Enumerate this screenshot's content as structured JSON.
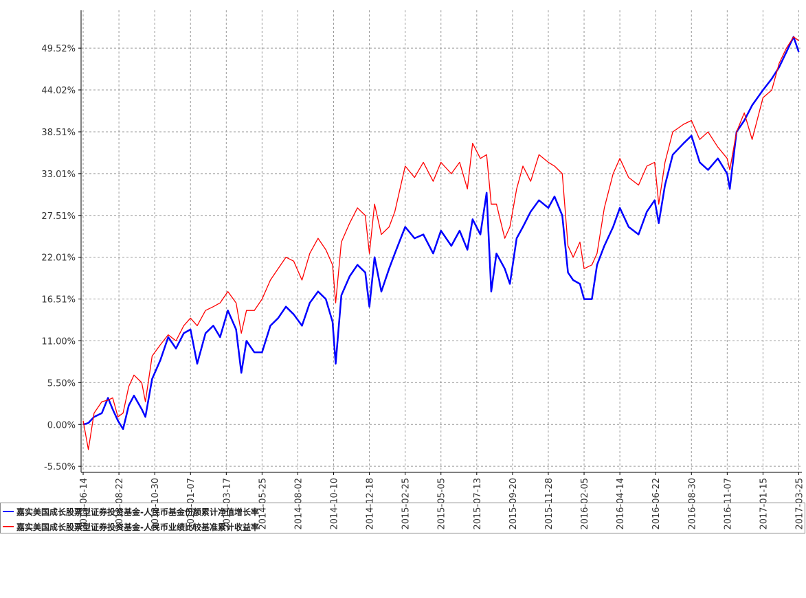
{
  "chart_data": {
    "type": "line",
    "x": [
      "2013-06-14",
      "2013-06-24",
      "2013-07-05",
      "2013-07-20",
      "2013-08-01",
      "2013-08-10",
      "2013-08-20",
      "2013-08-30",
      "2013-09-10",
      "2013-09-20",
      "2013-10-05",
      "2013-10-12",
      "2013-10-25",
      "2013-11-10",
      "2013-11-25",
      "2013-12-10",
      "2013-12-25",
      "2014-01-07",
      "2014-01-20",
      "2014-02-05",
      "2014-02-20",
      "2014-03-05",
      "2014-03-20",
      "2014-04-05",
      "2014-04-15",
      "2014-04-25",
      "2014-05-10",
      "2014-05-25",
      "2014-06-10",
      "2014-06-25",
      "2014-07-10",
      "2014-07-25",
      "2014-08-10",
      "2014-08-25",
      "2014-09-10",
      "2014-09-25",
      "2014-10-08",
      "2014-10-14",
      "2014-10-25",
      "2014-11-10",
      "2014-11-25",
      "2014-12-10",
      "2014-12-18",
      "2014-12-28",
      "2015-01-10",
      "2015-01-25",
      "2015-02-05",
      "2015-02-25",
      "2015-03-15",
      "2015-04-01",
      "2015-04-20",
      "2015-05-05",
      "2015-05-25",
      "2015-06-10",
      "2015-06-25",
      "2015-07-05",
      "2015-07-20",
      "2015-08-01",
      "2015-08-10",
      "2015-08-20",
      "2015-09-05",
      "2015-09-15",
      "2015-09-28",
      "2015-10-10",
      "2015-10-25",
      "2015-11-10",
      "2015-11-28",
      "2015-12-10",
      "2015-12-25",
      "2016-01-05",
      "2016-01-15",
      "2016-01-28",
      "2016-02-05",
      "2016-02-20",
      "2016-03-01",
      "2016-03-15",
      "2016-04-01",
      "2016-04-14",
      "2016-05-01",
      "2016-05-20",
      "2016-06-05",
      "2016-06-20",
      "2016-06-28",
      "2016-07-10",
      "2016-07-25",
      "2016-08-15",
      "2016-08-30",
      "2016-09-15",
      "2016-10-01",
      "2016-10-20",
      "2016-11-07",
      "2016-11-12",
      "2016-11-25",
      "2016-12-10",
      "2016-12-25",
      "2017-01-15",
      "2017-02-01",
      "2017-02-15",
      "2017-03-01",
      "2017-03-15",
      "2017-03-25"
    ],
    "series": [
      {
        "name": "嘉实美国成长股票型证券投资基金-人民币基金份额累计净值增长率",
        "color": "#0000ff",
        "values": [
          0.0,
          0.2,
          1.0,
          1.5,
          3.5,
          2.0,
          0.5,
          -0.6,
          2.5,
          3.8,
          2.0,
          1.0,
          6.0,
          8.5,
          11.5,
          10.0,
          12.0,
          12.5,
          8.0,
          12.0,
          13.0,
          11.5,
          15.0,
          12.5,
          6.8,
          11.0,
          9.5,
          9.5,
          13.0,
          14.0,
          15.5,
          14.5,
          13.0,
          16.0,
          17.5,
          16.5,
          13.5,
          8.0,
          17.0,
          19.5,
          21.0,
          20.0,
          15.5,
          22.0,
          17.5,
          20.5,
          22.5,
          26.0,
          24.5,
          25.0,
          22.5,
          25.5,
          23.5,
          25.5,
          23.0,
          27.0,
          25.0,
          30.5,
          17.5,
          22.5,
          20.5,
          18.5,
          24.5,
          26.0,
          28.0,
          29.5,
          28.5,
          30.0,
          27.5,
          20.0,
          19.0,
          18.5,
          16.5,
          16.5,
          21.0,
          23.5,
          26.0,
          28.5,
          26.0,
          25.0,
          28.0,
          29.5,
          26.5,
          31.5,
          35.5,
          37.0,
          38.0,
          34.5,
          33.5,
          35.0,
          33.0,
          31.0,
          38.5,
          40.0,
          42.0,
          44.0,
          45.5,
          47.0,
          49.0,
          51.0,
          49.0
        ]
      },
      {
        "name": "嘉实美国成长股票型证券投资基金-人民币业绩比较基准累计收益率",
        "color": "#ff0000",
        "values": [
          0.5,
          -3.3,
          1.5,
          3.0,
          3.2,
          3.5,
          1.0,
          1.5,
          5.0,
          6.5,
          5.5,
          3.0,
          9.0,
          10.5,
          11.8,
          11.0,
          13.0,
          14.0,
          13.0,
          15.0,
          15.5,
          16.0,
          17.5,
          16.0,
          12.0,
          15.0,
          15.0,
          16.5,
          19.0,
          20.5,
          22.0,
          21.5,
          19.0,
          22.5,
          24.5,
          23.0,
          21.0,
          16.0,
          24.0,
          26.5,
          28.5,
          27.5,
          22.5,
          29.0,
          25.0,
          26.0,
          28.0,
          34.0,
          32.5,
          34.5,
          32.0,
          34.5,
          33.0,
          34.5,
          31.0,
          37.0,
          35.0,
          35.5,
          29.0,
          29.0,
          24.5,
          26.0,
          31.0,
          34.0,
          32.0,
          35.5,
          34.5,
          34.0,
          33.0,
          23.5,
          22.0,
          24.0,
          20.5,
          21.0,
          22.5,
          28.5,
          33.0,
          35.0,
          32.5,
          31.5,
          34.0,
          34.5,
          29.0,
          34.5,
          38.5,
          39.5,
          40.0,
          37.5,
          38.5,
          36.5,
          35.0,
          33.5,
          38.5,
          41.0,
          37.5,
          43.0,
          44.0,
          47.5,
          49.5,
          51.0,
          50.5
        ]
      }
    ],
    "xlim": [
      "2013-06-10",
      "2017-03-31"
    ],
    "xticks": [
      "2013-06-14",
      "2013-08-22",
      "2013-10-30",
      "2014-01-07",
      "2014-03-17",
      "2014-05-25",
      "2014-08-02",
      "2014-10-10",
      "2014-12-18",
      "2015-02-25",
      "2015-05-05",
      "2015-07-13",
      "2015-09-20",
      "2015-11-28",
      "2016-02-05",
      "2016-04-14",
      "2016-06-22",
      "2016-08-30",
      "2016-11-07",
      "2017-01-15",
      "2017-03-25"
    ],
    "ylim": [
      -6.3,
      54.5
    ],
    "yticks": [
      {
        "value": -5.5,
        "label": "-5.50%"
      },
      {
        "value": 0,
        "label": "0.00%"
      },
      {
        "value": 5.5,
        "label": "5.50%"
      },
      {
        "value": 11.0,
        "label": "11.00%"
      },
      {
        "value": 16.51,
        "label": "16.51%"
      },
      {
        "value": 22.01,
        "label": "22.01%"
      },
      {
        "value": 27.51,
        "label": "27.51%"
      },
      {
        "value": 33.01,
        "label": "33.01%"
      },
      {
        "value": 38.51,
        "label": "38.51%"
      },
      {
        "value": 44.02,
        "label": "44.02%"
      },
      {
        "value": 49.52,
        "label": "49.52%"
      }
    ],
    "grid": true,
    "legend": "bottom"
  }
}
